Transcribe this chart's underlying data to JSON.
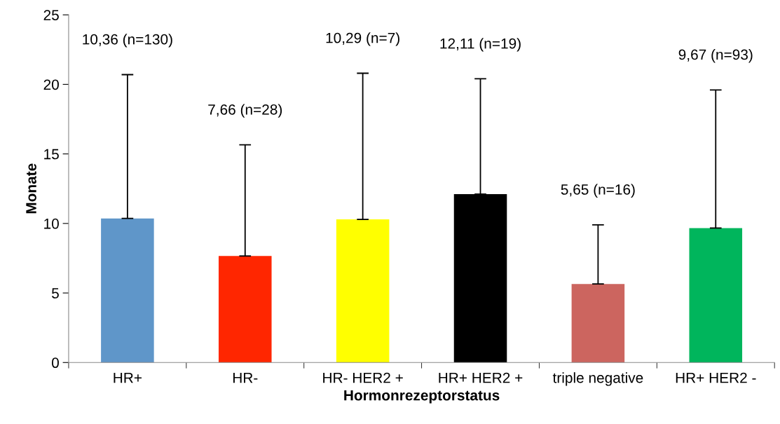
{
  "chart_data": {
    "type": "bar",
    "xlabel": "Hormonrezeptorstatus",
    "ylabel": "Monate",
    "categories": [
      "HR+",
      "HR-",
      "HR- HER2 +",
      "HR+ HER2 +",
      "triple negative",
      "HR+ HER2 -"
    ],
    "values": [
      10.36,
      7.66,
      10.29,
      12.11,
      5.65,
      9.67
    ],
    "colors": [
      "#5f96c9",
      "#ff2600",
      "#ffff00",
      "#000000",
      "#cc655f",
      "#00b55c"
    ],
    "errors": [
      [
        10.36,
        20.7
      ],
      [
        7.66,
        15.65
      ],
      [
        10.29,
        20.8
      ],
      [
        12.11,
        20.4
      ],
      [
        5.65,
        9.9
      ],
      [
        9.67,
        19.6
      ]
    ],
    "annotations": [
      {
        "text": "10,36 (n=130)",
        "x": "HR+",
        "y": 20.7
      },
      {
        "text": "7,66 (n=28)",
        "x": "HR-",
        "y": 15.65
      },
      {
        "text": "10,29 (n=7)",
        "x": "HR- HER2 +",
        "y": 20.8
      },
      {
        "text": "12,11 (n=19)",
        "x": "HR+ HER2 +",
        "y": 20.4
      },
      {
        "text": "5,65 (n=16)",
        "x": "triple negative",
        "y": 9.9
      },
      {
        "text": "9,67 (n=93)",
        "x": "HR+ HER2 -",
        "y": 19.6
      }
    ],
    "ylim": [
      0,
      25
    ],
    "yticks": [
      0,
      5,
      10,
      15,
      20,
      25
    ],
    "grid": false,
    "legend": false
  }
}
